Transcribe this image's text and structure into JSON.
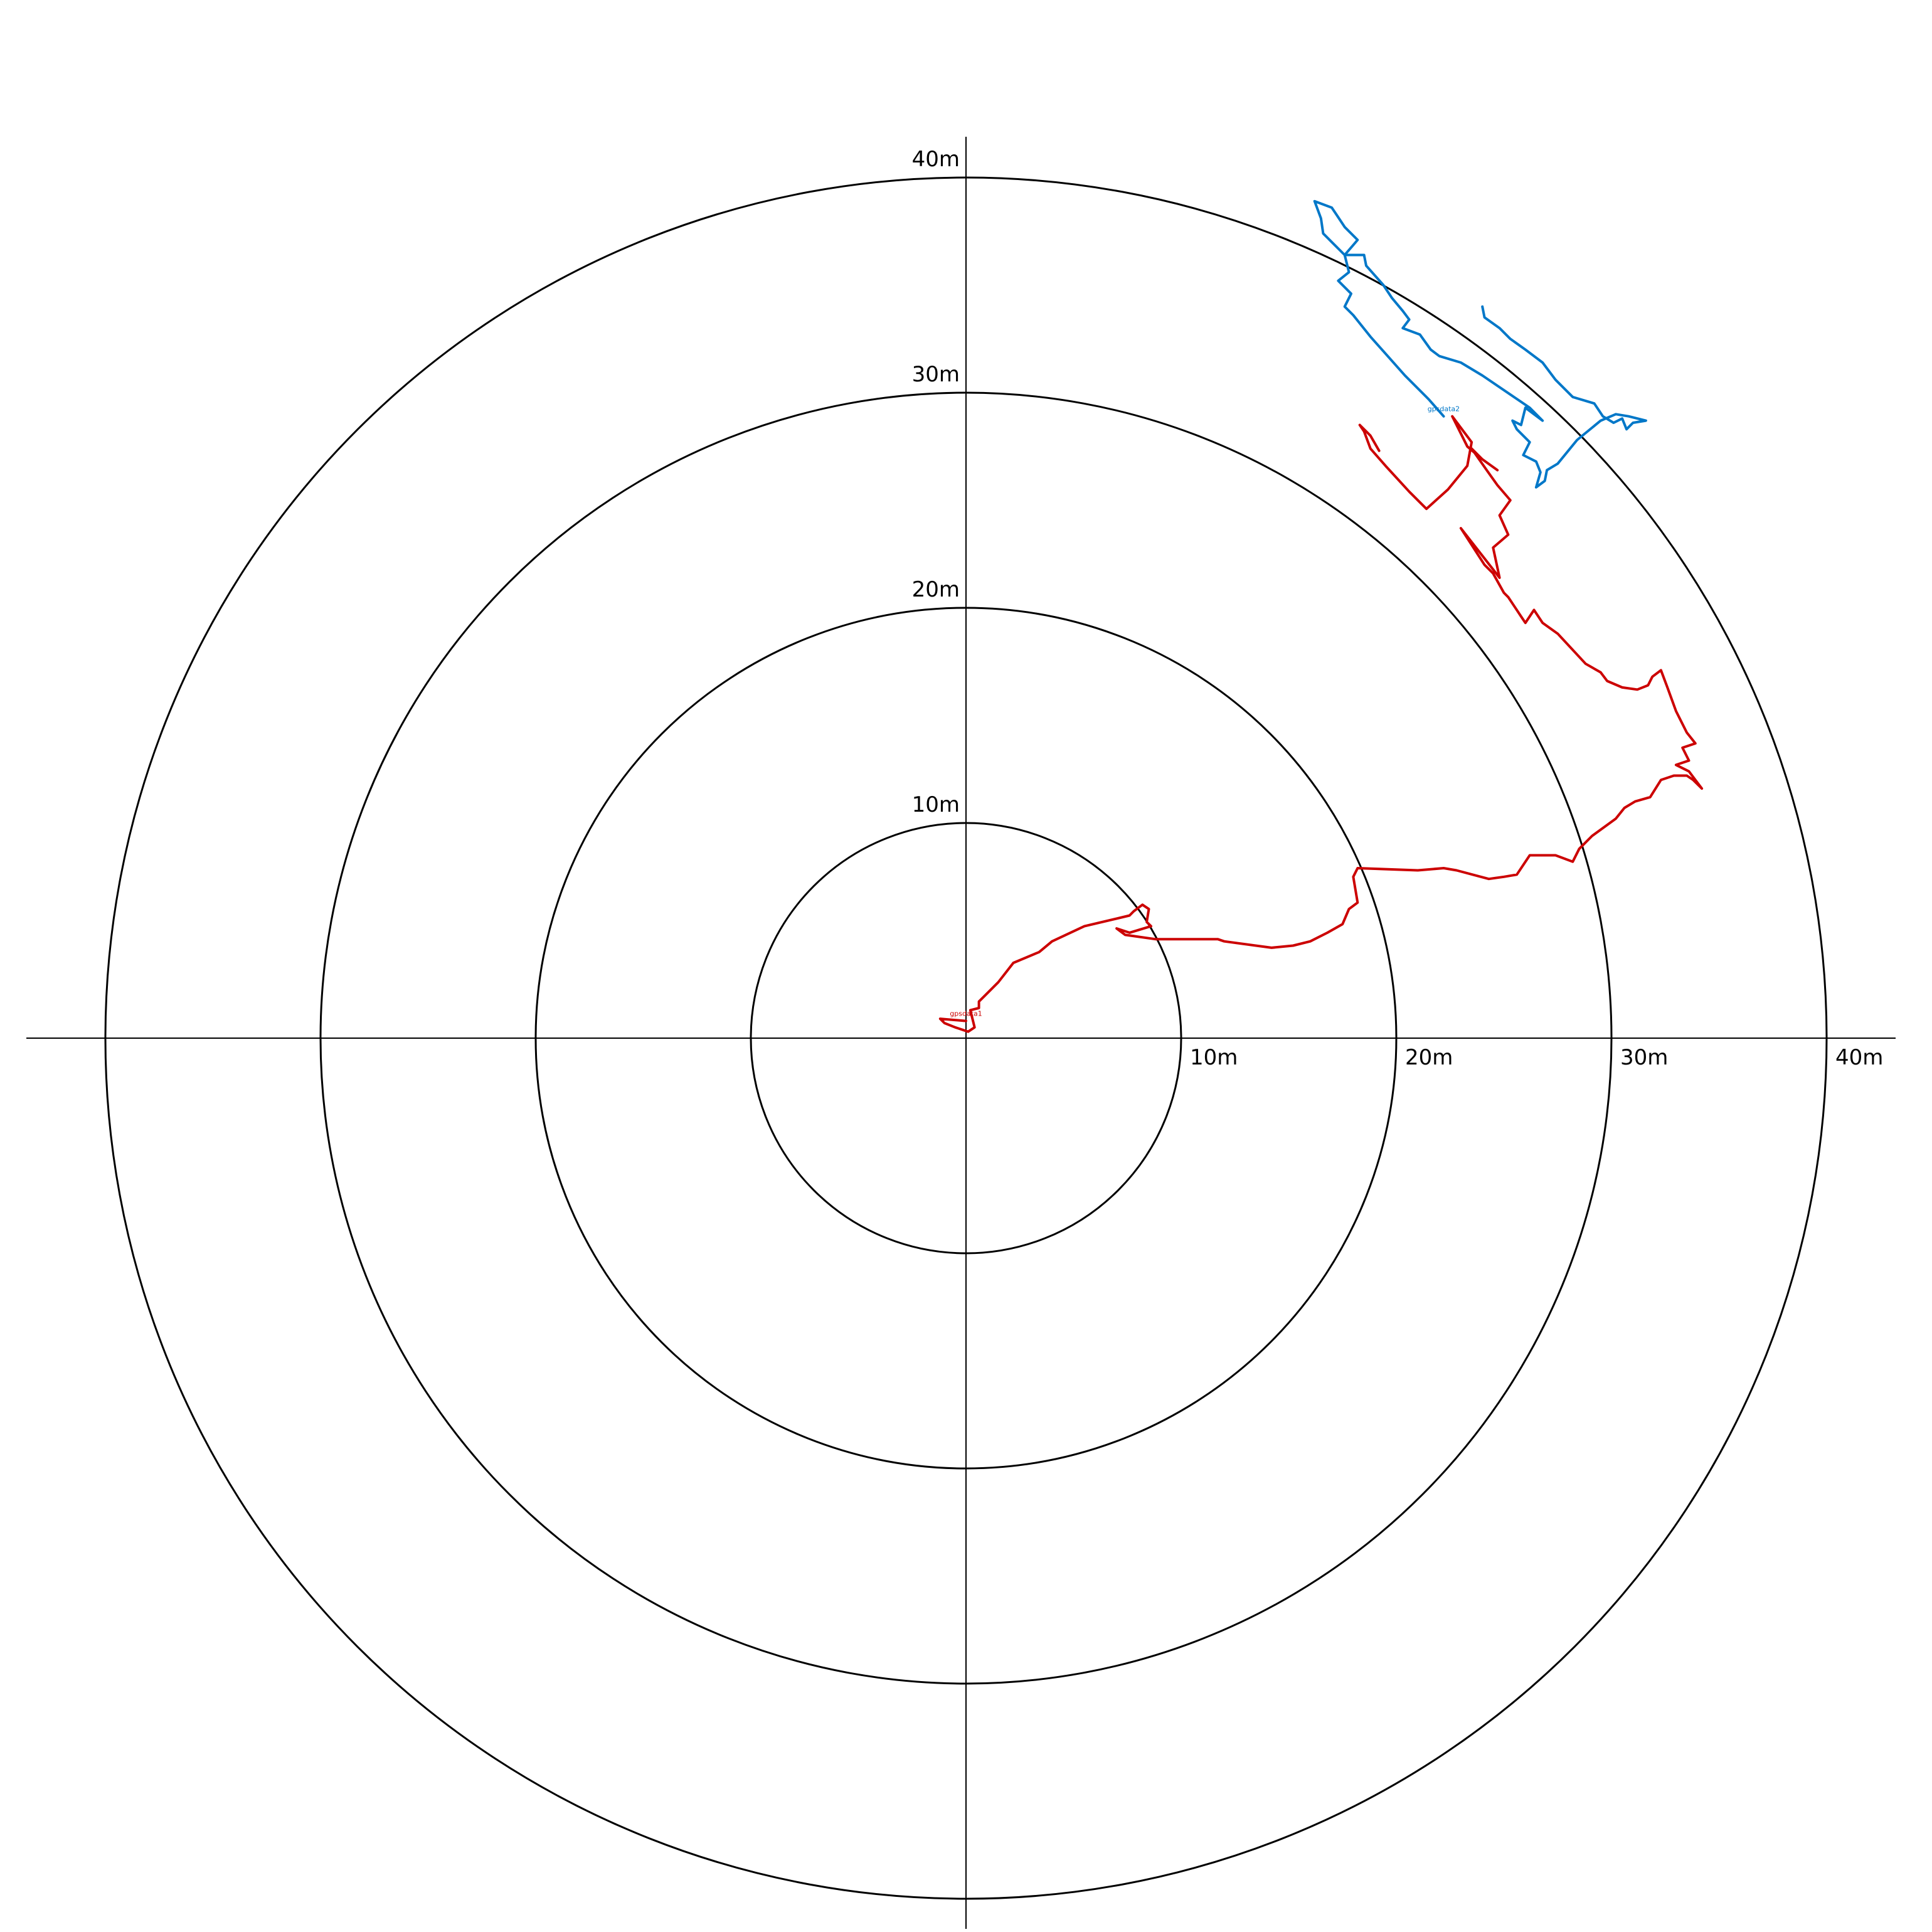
{
  "chart_data": {
    "type": "line",
    "units": "m",
    "ring_values": [
      10,
      20,
      30,
      40
    ],
    "ring_labels": [
      "10m",
      "20m",
      "30m",
      "40m"
    ],
    "x_tick_values": [
      10,
      20,
      30,
      40
    ],
    "x_tick_labels": [
      "10m",
      "20m",
      "30m",
      "40m"
    ],
    "y_tick_values": [
      10,
      20,
      30,
      40
    ],
    "y_tick_labels": [
      "10m",
      "20m",
      "30m",
      "40m"
    ],
    "range": [
      -42,
      42
    ],
    "grid": true,
    "legend": "none",
    "series": [
      {
        "name": "gpsdata1",
        "color": "#cc0000",
        "points": [
          [
            0,
            0.8
          ],
          [
            -1.2,
            0.9
          ],
          [
            -1.0,
            0.7
          ],
          [
            -0.5,
            0.5
          ],
          [
            0.1,
            0.3
          ],
          [
            0.4,
            0.5
          ],
          [
            0.3,
            0.9
          ],
          [
            0.2,
            1.3
          ],
          [
            0.6,
            1.4
          ],
          [
            0.6,
            1.7
          ],
          [
            0.9,
            2.0
          ],
          [
            1.5,
            2.6
          ],
          [
            2.2,
            3.5
          ],
          [
            3.4,
            4.0
          ],
          [
            4.0,
            4.5
          ],
          [
            5.5,
            5.2
          ],
          [
            7.6,
            5.7
          ],
          [
            7.8,
            5.9
          ],
          [
            8.2,
            6.2
          ],
          [
            8.5,
            6.0
          ],
          [
            8.4,
            5.4
          ],
          [
            8.6,
            5.2
          ],
          [
            7.6,
            4.9
          ],
          [
            7.0,
            5.1
          ],
          [
            7.4,
            4.8
          ],
          [
            8.8,
            4.6
          ],
          [
            11.7,
            4.6
          ],
          [
            12.0,
            4.5
          ],
          [
            14.2,
            4.2
          ],
          [
            15.2,
            4.3
          ],
          [
            16.0,
            4.5
          ],
          [
            16.8,
            4.9
          ],
          [
            17.5,
            5.3
          ],
          [
            17.8,
            6.0
          ],
          [
            18.2,
            6.3
          ],
          [
            18.0,
            7.5
          ],
          [
            18.2,
            7.9
          ],
          [
            21.0,
            7.8
          ],
          [
            22.2,
            7.9
          ],
          [
            22.8,
            7.8
          ],
          [
            24.3,
            7.4
          ],
          [
            25.0,
            7.5
          ],
          [
            25.6,
            7.6
          ],
          [
            26.2,
            8.5
          ],
          [
            27.4,
            8.5
          ],
          [
            28.2,
            8.2
          ],
          [
            28.5,
            8.8
          ],
          [
            29.1,
            9.4
          ],
          [
            30.2,
            10.2
          ],
          [
            30.6,
            10.7
          ],
          [
            31.1,
            11.0
          ],
          [
            31.8,
            11.2
          ],
          [
            32.3,
            12.0
          ],
          [
            32.9,
            12.2
          ],
          [
            33.5,
            12.2
          ],
          [
            33.8,
            12.0
          ],
          [
            34.2,
            11.6
          ],
          [
            33.9,
            12.0
          ],
          [
            33.6,
            12.4
          ],
          [
            33.0,
            12.7
          ],
          [
            33.6,
            12.9
          ],
          [
            33.3,
            13.5
          ],
          [
            33.9,
            13.7
          ],
          [
            33.5,
            14.2
          ],
          [
            33.0,
            15.2
          ],
          [
            32.6,
            16.3
          ],
          [
            32.3,
            17.1
          ],
          [
            31.9,
            16.8
          ],
          [
            31.7,
            16.4
          ],
          [
            31.2,
            16.2
          ],
          [
            30.5,
            16.3
          ],
          [
            29.8,
            16.6
          ],
          [
            29.5,
            17.0
          ],
          [
            28.8,
            17.4
          ],
          [
            27.5,
            18.8
          ],
          [
            26.8,
            19.3
          ],
          [
            26.4,
            19.9
          ],
          [
            26.0,
            19.3
          ],
          [
            25.8,
            19.6
          ],
          [
            25.2,
            20.5
          ],
          [
            25.0,
            20.7
          ],
          [
            24.5,
            21.6
          ],
          [
            24.1,
            22.0
          ],
          [
            23.0,
            23.7
          ],
          [
            24.8,
            21.4
          ],
          [
            24.5,
            22.8
          ],
          [
            25.2,
            23.4
          ],
          [
            24.8,
            24.3
          ],
          [
            25.3,
            25.0
          ],
          [
            24.7,
            25.7
          ],
          [
            24.2,
            26.4
          ],
          [
            23.5,
            27.4
          ],
          [
            24.0,
            26.9
          ],
          [
            24.7,
            26.4
          ],
          [
            24.0,
            26.9
          ],
          [
            23.3,
            27.5
          ],
          [
            22.6,
            28.9
          ],
          [
            23.5,
            27.7
          ],
          [
            23.3,
            26.6
          ],
          [
            22.4,
            25.5
          ],
          [
            21.4,
            24.6
          ],
          [
            20.6,
            25.4
          ],
          [
            19.5,
            26.6
          ],
          [
            18.8,
            27.4
          ],
          [
            18.5,
            28.2
          ],
          [
            18.3,
            28.5
          ],
          [
            18.8,
            28.0
          ],
          [
            19.2,
            27.3
          ]
        ]
      },
      {
        "name": "gpsdata2",
        "color": "#0077c8",
        "points": [
          [
            22.2,
            28.9
          ],
          [
            21.5,
            29.7
          ],
          [
            20.4,
            30.8
          ],
          [
            19.6,
            31.7
          ],
          [
            18.8,
            32.6
          ],
          [
            18.0,
            33.6
          ],
          [
            17.6,
            34.0
          ],
          [
            17.9,
            34.6
          ],
          [
            17.3,
            35.2
          ],
          [
            17.8,
            35.6
          ],
          [
            17.6,
            36.4
          ],
          [
            17.0,
            37.0
          ],
          [
            16.6,
            37.4
          ],
          [
            16.5,
            38.1
          ],
          [
            16.2,
            38.9
          ],
          [
            17.0,
            38.6
          ],
          [
            17.2,
            38.3
          ],
          [
            17.6,
            37.7
          ],
          [
            18.2,
            37.1
          ],
          [
            17.6,
            36.4
          ],
          [
            18.5,
            36.4
          ],
          [
            18.6,
            35.9
          ],
          [
            19.4,
            35.0
          ],
          [
            19.8,
            34.4
          ],
          [
            20.3,
            33.8
          ],
          [
            20.6,
            33.4
          ],
          [
            20.3,
            33.0
          ],
          [
            21.1,
            32.7
          ],
          [
            21.6,
            32.0
          ],
          [
            22.0,
            31.7
          ],
          [
            23.0,
            31.4
          ],
          [
            24.0,
            30.8
          ],
          [
            26.2,
            29.3
          ],
          [
            26.8,
            28.7
          ],
          [
            26.0,
            29.3
          ],
          [
            25.8,
            28.5
          ],
          [
            25.4,
            28.7
          ],
          [
            25.6,
            28.3
          ],
          [
            26.2,
            27.7
          ],
          [
            25.9,
            27.1
          ],
          [
            26.5,
            26.8
          ],
          [
            26.7,
            26.3
          ],
          [
            26.5,
            25.6
          ],
          [
            26.9,
            25.9
          ],
          [
            27.0,
            26.4
          ],
          [
            27.5,
            26.7
          ],
          [
            28.4,
            27.8
          ],
          [
            29.5,
            28.7
          ],
          [
            30.2,
            29.0
          ],
          [
            30.8,
            28.9
          ],
          [
            31.6,
            28.7
          ],
          [
            31.0,
            28.6
          ],
          [
            30.7,
            28.3
          ],
          [
            30.5,
            28.8
          ],
          [
            30.1,
            28.6
          ],
          [
            29.6,
            28.9
          ],
          [
            29.2,
            29.5
          ],
          [
            28.2,
            29.8
          ],
          [
            27.4,
            30.6
          ],
          [
            26.8,
            31.4
          ],
          [
            26.0,
            32.0
          ],
          [
            25.3,
            32.5
          ],
          [
            24.8,
            33.0
          ],
          [
            24.1,
            33.5
          ],
          [
            24.0,
            34.0
          ]
        ]
      }
    ]
  }
}
